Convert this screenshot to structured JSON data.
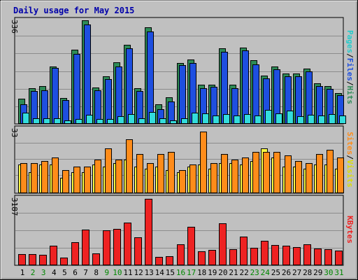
{
  "chart_data": {
    "type": "bar",
    "title": "Daily usage for May 2015",
    "days": [
      "1",
      "2",
      "3",
      "4",
      "5",
      "6",
      "7",
      "8",
      "9",
      "10",
      "11",
      "12",
      "13",
      "14",
      "15",
      "16",
      "17",
      "18",
      "19",
      "20",
      "21",
      "22",
      "23",
      "24",
      "25",
      "26",
      "27",
      "28",
      "29",
      "30",
      "31"
    ],
    "weekend_days": [
      2,
      3,
      9,
      10,
      16,
      17,
      23,
      24,
      30,
      31
    ],
    "colors": {
      "hits": "#2e8b57",
      "files": "#1e4fe0",
      "pages": "#33dddd",
      "visits": "#ffff44",
      "sites": "#ff8c1a",
      "kbytes": "#ee2222",
      "title": "#0000aa",
      "weekday_label": "#000000",
      "weekend_label": "#008800",
      "background": "#c0c0c0"
    },
    "panels": [
      {
        "id": "top",
        "max_label": "336",
        "ymax": 336,
        "side_labels": [
          {
            "text": "Pages",
            "color": "#22cccc"
          },
          {
            "text": "/",
            "color": "#000000"
          },
          {
            "text": "Files",
            "color": "#1e4fe0"
          },
          {
            "text": "/",
            "color": "#000000"
          },
          {
            "text": "Hits",
            "color": "#2e8b57"
          }
        ],
        "series": [
          {
            "name": "Hits",
            "color": "#2e8b57",
            "values": [
              79,
              114,
              120,
              184,
              83,
              239,
              336,
              117,
              154,
              198,
              256,
              114,
              314,
              62,
              84,
              196,
              208,
              125,
              126,
              244,
              126,
              246,
              206,
              155,
              186,
              162,
              162,
              178,
              130,
              122,
              98
            ]
          },
          {
            "name": "Files",
            "color": "#1e4fe0",
            "values": [
              62,
              105,
              107,
              180,
              75,
              227,
              323,
              107,
              145,
              185,
              245,
              104,
              300,
              45,
              70,
              189,
              196,
              114,
              118,
              233,
              115,
              237,
              192,
              147,
              175,
              153,
              153,
              169,
              122,
              113,
              92
            ]
          },
          {
            "name": "Pages",
            "color": "#33dddd",
            "values": [
              34,
              17,
              17,
              15,
              10,
              14,
              28,
              14,
              14,
              23,
              30,
              16,
              36,
              16,
              10,
              16,
              34,
              31,
              24,
              30,
              24,
              29,
              26,
              44,
              32,
              42,
              23,
              27,
              26,
              30,
              26
            ]
          }
        ]
      },
      {
        "id": "middle",
        "max_label": "33",
        "ymax": 33,
        "side_labels": [
          {
            "text": "Sites",
            "color": "#ff8c1a"
          },
          {
            "text": "/",
            "color": "#000000"
          },
          {
            "text": "Visits",
            "color": "#dddd00"
          }
        ],
        "series": [
          {
            "name": "Visits",
            "color": "#ffff44",
            "values": [
              15,
              11,
              15,
              15,
              8,
              11,
              11,
              15,
              14,
              16,
              18,
              14,
              13,
              14,
              12,
              11,
              14,
              15,
              13,
              16,
              16,
              15,
              17,
              24,
              19,
              14,
              14,
              13,
              15,
              15,
              13
            ]
          },
          {
            "name": "Sites",
            "color": "#ff8c1a",
            "values": [
              16,
              16,
              17,
              19,
              12,
              14,
              14,
              18,
              24,
              18,
              29,
              21,
              16,
              21,
              22,
              12,
              15,
              33,
              16,
              21,
              18,
              19,
              22,
              22,
              22,
              20,
              17,
              16,
              21,
              23,
              19
            ]
          }
        ]
      },
      {
        "id": "bottom",
        "max_label": "3187",
        "ymax": 3187,
        "side_labels": [
          {
            "text": "KBytes",
            "color": "#ee2222"
          }
        ],
        "series": [
          {
            "name": "KBytes",
            "color": "#ee2222",
            "values": [
              500,
              520,
              480,
              900,
              350,
              1100,
              1700,
              540,
              1650,
              1730,
              2050,
              1330,
              3187,
              380,
              420,
              970,
              1820,
              630,
              700,
              2000,
              740,
              1350,
              800,
              1160,
              960,
              920,
              850,
              990,
              780,
              740,
              690
            ]
          }
        ]
      }
    ]
  }
}
